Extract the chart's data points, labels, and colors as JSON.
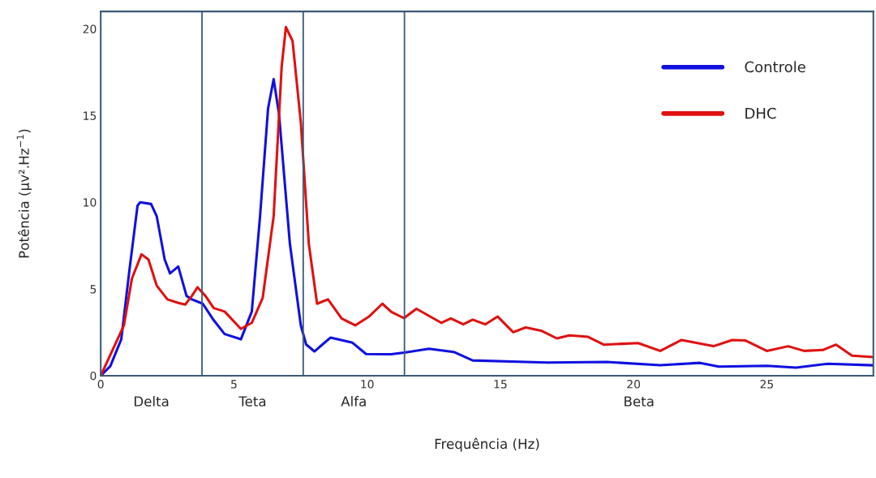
{
  "chart_data": {
    "type": "line",
    "xlabel": "Frequência (Hz)",
    "ylabel": "Potência (μv².Hz$^{−1}$)",
    "xlim": [
      0,
      29
    ],
    "ylim": [
      0,
      21
    ],
    "xticks": [
      0,
      5,
      10,
      15,
      20,
      25
    ],
    "yticks": [
      0,
      5,
      10,
      15,
      20
    ],
    "grid": false,
    "legend": "top right",
    "marker": "none",
    "line_style": "solid",
    "series": [
      {
        "name": "Controle",
        "color": "#1010e0",
        "x": [
          0,
          0.36,
          0.77,
          1.07,
          1.38,
          1.48,
          1.89,
          2.1,
          2.4,
          2.6,
          2.91,
          3.22,
          3.42,
          3.83,
          4.24,
          4.65,
          5.26,
          5.67,
          5.98,
          6.28,
          6.49,
          6.69,
          7.1,
          7.51,
          7.71,
          8.02,
          8.32,
          8.63,
          9.45,
          9.96,
          10.9,
          11.38,
          12.32,
          13.25,
          13.96,
          15.95,
          16.77,
          19.0,
          21.0,
          22.5,
          23.2,
          25.0,
          26.1,
          27.3,
          29.0
        ],
        "values": [
          0,
          0.55,
          2.1,
          6.0,
          9.8,
          10.0,
          9.9,
          9.2,
          6.7,
          5.9,
          6.3,
          4.6,
          4.4,
          4.15,
          3.2,
          2.4,
          2.1,
          3.7,
          9.2,
          15.4,
          17.1,
          15.1,
          7.6,
          2.9,
          1.8,
          1.4,
          1.8,
          2.2,
          1.9,
          1.25,
          1.24,
          1.33,
          1.55,
          1.37,
          0.88,
          0.79,
          0.76,
          0.79,
          0.61,
          0.74,
          0.52,
          0.57,
          0.47,
          0.69,
          0.6
        ]
      },
      {
        "name": "DHC",
        "color": "#e01010",
        "x": [
          0,
          0.87,
          1.17,
          1.53,
          1.79,
          2.1,
          2.5,
          2.91,
          3.17,
          3.42,
          3.63,
          3.93,
          4.24,
          4.65,
          5.26,
          5.67,
          6.08,
          6.49,
          6.79,
          6.95,
          7.2,
          7.51,
          7.81,
          8.12,
          8.53,
          9.04,
          9.55,
          10.06,
          10.57,
          10.91,
          11.38,
          11.85,
          12.78,
          13.14,
          13.61,
          13.96,
          14.43,
          14.9,
          15.48,
          15.95,
          16.53,
          17.12,
          17.59,
          18.29,
          18.88,
          20.17,
          21.0,
          21.8,
          23.0,
          23.7,
          24.2,
          25.0,
          25.8,
          26.4,
          27.1,
          27.6,
          28.2,
          29.0
        ],
        "values": [
          0,
          2.9,
          5.6,
          7.0,
          6.7,
          5.2,
          4.4,
          4.2,
          4.1,
          4.6,
          5.1,
          4.6,
          3.9,
          3.7,
          2.7,
          3.05,
          4.5,
          9.2,
          17.8,
          20.1,
          19.3,
          14.6,
          7.6,
          4.15,
          4.4,
          3.3,
          2.9,
          3.4,
          4.15,
          3.68,
          3.32,
          3.86,
          3.05,
          3.3,
          2.96,
          3.23,
          2.96,
          3.41,
          2.51,
          2.78,
          2.6,
          2.15,
          2.33,
          2.24,
          1.79,
          1.88,
          1.43,
          2.06,
          1.7,
          2.06,
          2.03,
          1.43,
          1.7,
          1.43,
          1.48,
          1.79,
          1.16,
          1.07
        ]
      }
    ],
    "ref_lines": [
      {
        "axis": "x",
        "value": 3.8,
        "color": "#3a5a78"
      },
      {
        "axis": "x",
        "value": 7.6,
        "color": "#3a5a78"
      },
      {
        "axis": "x",
        "value": 11.4,
        "color": "#3a5a78"
      }
    ],
    "annotations": [
      "Delta",
      "Teta",
      "Alfa",
      "Beta"
    ]
  }
}
